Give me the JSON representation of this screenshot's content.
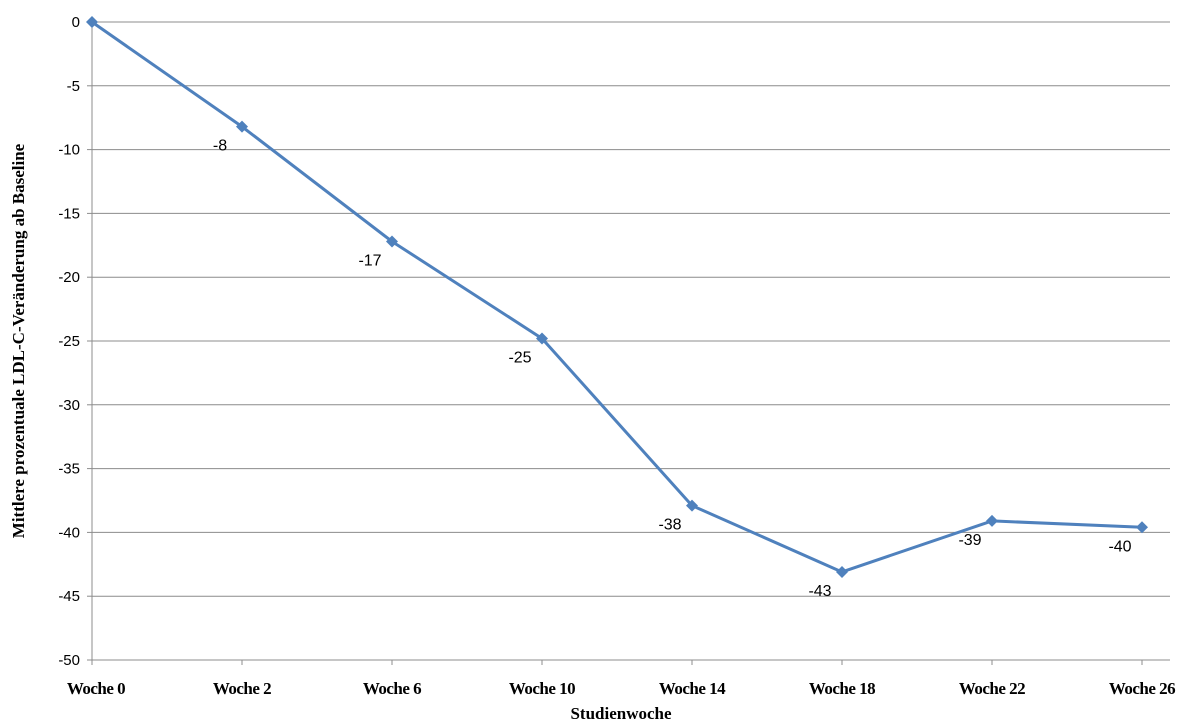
{
  "chart_data": {
    "type": "line",
    "title": "",
    "xlabel": "Studienwoche",
    "ylabel": "Mittlere prozentuale LDL-C-Veränderung ab Baseline",
    "categories": [
      "Woche 0",
      "Woche 2",
      "Woche 6",
      "Woche 10",
      "Woche 14",
      "Woche 18",
      "Woche 22",
      "Woche 26"
    ],
    "series": [
      {
        "values": [
          0,
          -8.2,
          -17.2,
          -24.8,
          -37.9,
          -43.1,
          -39.1,
          -39.6
        ],
        "data_labels": [
          "",
          "-8",
          "-17",
          "-25",
          "-38",
          "-43",
          "-39",
          "-40"
        ]
      }
    ],
    "y_ticks": [
      "0",
      "-5",
      "-10",
      "-15",
      "-20",
      "-25",
      "-30",
      "-35",
      "-40",
      "-45",
      "-50"
    ],
    "ylim": [
      -50,
      0
    ],
    "grid": true,
    "line_color": "#4f81bd",
    "grid_color": "#8c8c8c"
  }
}
